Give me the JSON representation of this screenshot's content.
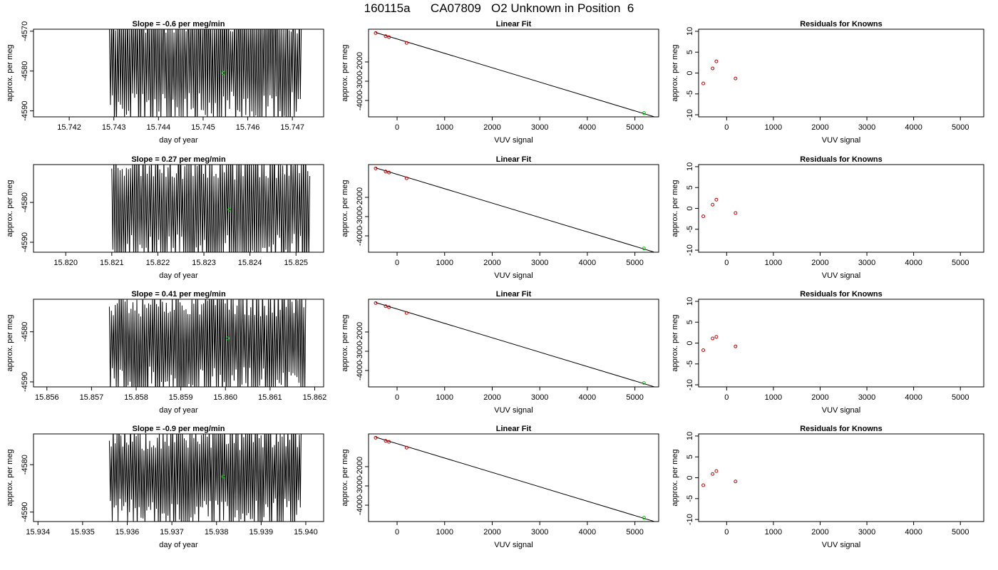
{
  "figure": {
    "title": "160115a      CA07809   O2 Unknown in Position  6"
  },
  "colors": {
    "line": "#000000",
    "known_points": "#cc0000",
    "unknown_point": "#00cc00"
  },
  "chart_data": [
    {
      "type": "line",
      "panel": "drift-1",
      "title": "Slope =  -0.6  per meg/min",
      "xlabel": "day of year",
      "ylabel": "approx. per meg",
      "xlim": [
        15.7412,
        15.7477
      ],
      "ylim": [
        -4591.5,
        -4569.5
      ],
      "xticks": [
        15.742,
        15.743,
        15.744,
        15.745,
        15.746,
        15.747
      ],
      "xtick_labels": [
        "15.742",
        "15.743",
        "15.744",
        "15.745",
        "15.746",
        "15.747"
      ],
      "yticks": [
        -4570,
        -4580,
        -4590
      ],
      "ytick_labels": [
        "-4570",
        "-4580",
        "-4590"
      ],
      "trace": {
        "x_start": 15.7429,
        "x_end": 15.7472,
        "cycles": 95,
        "center": -4578,
        "amplitude": 16,
        "seed": 11
      },
      "marker": {
        "x": 15.74545,
        "y": -4580.5
      }
    },
    {
      "type": "scatter",
      "panel": "fit-1",
      "title": "Linear Fit",
      "xlabel": "VUV signal",
      "ylabel": "approx. per meg",
      "xlim": [
        -600,
        5500
      ],
      "ylim": [
        -4850,
        -300
      ],
      "xticks": [
        0,
        1000,
        2000,
        3000,
        4000,
        5000
      ],
      "xtick_labels": [
        "0",
        "1000",
        "2000",
        "3000",
        "4000",
        "5000"
      ],
      "yticks": [
        -2000,
        -3000,
        -4000
      ],
      "ytick_labels": [
        "-2000",
        "-3000",
        "-4000"
      ],
      "fit_line": {
        "x": [
          -450,
          5400
        ],
        "y": [
          -470,
          -4840
        ]
      },
      "knowns": {
        "x": [
          -450,
          -240,
          -170,
          200
        ],
        "y": [
          -500,
          -660,
          -710,
          -1010
        ]
      },
      "unknown": {
        "x": 5190,
        "y": -4650
      }
    },
    {
      "type": "scatter",
      "panel": "resid-1",
      "title": "Residuals for Knowns",
      "xlabel": "VUV signal",
      "ylabel": "approx. per meg",
      "xlim": [
        -600,
        5500
      ],
      "ylim": [
        -10.5,
        10.5
      ],
      "xticks": [
        0,
        1000,
        2000,
        3000,
        4000,
        5000
      ],
      "xtick_labels": [
        "0",
        "1000",
        "2000",
        "3000",
        "4000",
        "5000"
      ],
      "yticks": [
        10,
        5,
        0,
        -5,
        -10
      ],
      "ytick_labels": [
        "10",
        "5",
        "0",
        "-5",
        "-10"
      ],
      "knowns": {
        "x": [
          -500,
          -300,
          -220,
          190
        ],
        "y": [
          -2.5,
          1.1,
          2.8,
          -1.3
        ]
      }
    },
    {
      "type": "line",
      "panel": "drift-2",
      "title": "Slope =  0.27  per meg/min",
      "xlabel": "day of year",
      "ylabel": "approx. per meg",
      "xlim": [
        15.8193,
        15.8256
      ],
      "ylim": [
        -4592.5,
        -4570.5
      ],
      "xticks": [
        15.82,
        15.821,
        15.822,
        15.823,
        15.824,
        15.825
      ],
      "xtick_labels": [
        "15.820",
        "15.821",
        "15.822",
        "15.823",
        "15.824",
        "15.825"
      ],
      "yticks": [
        -4580,
        -4590
      ],
      "ytick_labels": [
        "-4580",
        "-4590"
      ],
      "trace": {
        "x_start": 15.821,
        "x_end": 15.8253,
        "cycles": 95,
        "center": -4581,
        "amplitude": 15,
        "seed": 23
      },
      "marker": {
        "x": 15.82355,
        "y": -4581.8
      }
    },
    {
      "type": "scatter",
      "panel": "fit-2",
      "title": "Linear Fit",
      "xlabel": "VUV signal",
      "ylabel": "approx. per meg",
      "xlim": [
        -600,
        5500
      ],
      "ylim": [
        -4850,
        -300
      ],
      "xticks": [
        0,
        1000,
        2000,
        3000,
        4000,
        5000
      ],
      "xtick_labels": [
        "0",
        "1000",
        "2000",
        "3000",
        "4000",
        "5000"
      ],
      "yticks": [
        -2000,
        -3000,
        -4000
      ],
      "ytick_labels": [
        "-2000",
        "-3000",
        "-4000"
      ],
      "fit_line": {
        "x": [
          -450,
          5400
        ],
        "y": [
          -470,
          -4840
        ]
      },
      "knowns": {
        "x": [
          -450,
          -240,
          -170,
          200
        ],
        "y": [
          -500,
          -660,
          -710,
          -1010
        ]
      },
      "unknown": {
        "x": 5190,
        "y": -4650
      }
    },
    {
      "type": "scatter",
      "panel": "resid-2",
      "title": "Residuals for Knowns",
      "xlabel": "VUV signal",
      "ylabel": "approx. per meg",
      "xlim": [
        -600,
        5500
      ],
      "ylim": [
        -10.5,
        10.5
      ],
      "xticks": [
        0,
        1000,
        2000,
        3000,
        4000,
        5000
      ],
      "xtick_labels": [
        "0",
        "1000",
        "2000",
        "3000",
        "4000",
        "5000"
      ],
      "yticks": [
        10,
        5,
        0,
        -5,
        -10
      ],
      "ytick_labels": [
        "10",
        "5",
        "0",
        "-5",
        "-10"
      ],
      "knowns": {
        "x": [
          -500,
          -300,
          -220,
          190
        ],
        "y": [
          -1.9,
          0.9,
          2.1,
          -1.1
        ]
      }
    },
    {
      "type": "line",
      "panel": "drift-3",
      "title": "Slope =  0.41  per meg/min",
      "xlabel": "day of year",
      "ylabel": "approx. per meg",
      "xlim": [
        15.8557,
        15.8622
      ],
      "ylim": [
        -4591,
        -4573.5
      ],
      "xticks": [
        15.856,
        15.857,
        15.858,
        15.859,
        15.86,
        15.861,
        15.862
      ],
      "xtick_labels": [
        "15.856",
        "15.857",
        "15.858",
        "15.859",
        "15.860",
        "15.861",
        "15.862"
      ],
      "yticks": [
        -4580,
        -4590
      ],
      "ytick_labels": [
        "-4580",
        "-4590"
      ],
      "trace": {
        "x_start": 15.8574,
        "x_end": 15.8618,
        "cycles": 100,
        "center": -4582,
        "amplitude": 11,
        "seed": 37
      },
      "marker": {
        "x": 15.86005,
        "y": -4581.3
      }
    },
    {
      "type": "scatter",
      "panel": "fit-3",
      "title": "Linear Fit",
      "xlabel": "VUV signal",
      "ylabel": "approx. per meg",
      "xlim": [
        -600,
        5500
      ],
      "ylim": [
        -4850,
        -300
      ],
      "xticks": [
        0,
        1000,
        2000,
        3000,
        4000,
        5000
      ],
      "xtick_labels": [
        "0",
        "1000",
        "2000",
        "3000",
        "4000",
        "5000"
      ],
      "yticks": [
        -2000,
        -3000,
        -4000
      ],
      "ytick_labels": [
        "-2000",
        "-3000",
        "-4000"
      ],
      "fit_line": {
        "x": [
          -450,
          5400
        ],
        "y": [
          -470,
          -4840
        ]
      },
      "knowns": {
        "x": [
          -450,
          -240,
          -170,
          200
        ],
        "y": [
          -500,
          -660,
          -710,
          -1010
        ]
      },
      "unknown": {
        "x": 5190,
        "y": -4650
      }
    },
    {
      "type": "scatter",
      "panel": "resid-3",
      "title": "Residuals for Knowns",
      "xlabel": "VUV signal",
      "ylabel": "approx. per meg",
      "xlim": [
        -600,
        5500
      ],
      "ylim": [
        -10.5,
        10.5
      ],
      "xticks": [
        0,
        1000,
        2000,
        3000,
        4000,
        5000
      ],
      "xtick_labels": [
        "0",
        "1000",
        "2000",
        "3000",
        "4000",
        "5000"
      ],
      "yticks": [
        10,
        5,
        0,
        -5,
        -10
      ],
      "ytick_labels": [
        "10",
        "5",
        "0",
        "-5",
        "-10"
      ],
      "knowns": {
        "x": [
          -500,
          -300,
          -220,
          190
        ],
        "y": [
          -1.7,
          1.1,
          1.5,
          -0.8
        ]
      }
    },
    {
      "type": "line",
      "panel": "drift-4",
      "title": "Slope =  -0.9  per meg/min",
      "xlabel": "day of year",
      "ylabel": "approx. per meg",
      "xlim": [
        15.9339,
        15.9404
      ],
      "ylim": [
        -4592,
        -4573.5
      ],
      "xticks": [
        15.934,
        15.935,
        15.936,
        15.937,
        15.938,
        15.939,
        15.94
      ],
      "xtick_labels": [
        "15.934",
        "15.935",
        "15.936",
        "15.937",
        "15.938",
        "15.939",
        "15.940"
      ],
      "yticks": [
        -4580,
        -4590
      ],
      "ytick_labels": [
        "-4580",
        "-4590"
      ],
      "trace": {
        "x_start": 15.9356,
        "x_end": 15.9399,
        "cycles": 100,
        "center": -4582,
        "amplitude": 11,
        "seed": 53
      },
      "marker": {
        "x": 15.93815,
        "y": -4582.5
      }
    },
    {
      "type": "scatter",
      "panel": "fit-4",
      "title": "Linear Fit",
      "xlabel": "VUV signal",
      "ylabel": "approx. per meg",
      "xlim": [
        -600,
        5500
      ],
      "ylim": [
        -4850,
        -300
      ],
      "xticks": [
        0,
        1000,
        2000,
        3000,
        4000,
        5000
      ],
      "xtick_labels": [
        "0",
        "1000",
        "2000",
        "3000",
        "4000",
        "5000"
      ],
      "yticks": [
        -2000,
        -3000,
        -4000
      ],
      "ytick_labels": [
        "-2000",
        "-3000",
        "-4000"
      ],
      "fit_line": {
        "x": [
          -450,
          5400
        ],
        "y": [
          -470,
          -4840
        ]
      },
      "knowns": {
        "x": [
          -450,
          -240,
          -170,
          200
        ],
        "y": [
          -500,
          -660,
          -710,
          -1010
        ]
      },
      "unknown": {
        "x": 5190,
        "y": -4650
      }
    },
    {
      "type": "scatter",
      "panel": "resid-4",
      "title": "Residuals for Knowns",
      "xlabel": "VUV signal",
      "ylabel": "approx. per meg",
      "xlim": [
        -600,
        5500
      ],
      "ylim": [
        -10.5,
        10.5
      ],
      "xticks": [
        0,
        1000,
        2000,
        3000,
        4000,
        5000
      ],
      "xtick_labels": [
        "0",
        "1000",
        "2000",
        "3000",
        "4000",
        "5000"
      ],
      "yticks": [
        10,
        5,
        0,
        -5,
        -10
      ],
      "ytick_labels": [
        "10",
        "5",
        "0",
        "-5",
        "-10"
      ],
      "knowns": {
        "x": [
          -500,
          -300,
          -220,
          190
        ],
        "y": [
          -1.8,
          0.9,
          1.6,
          -0.9
        ]
      }
    }
  ]
}
